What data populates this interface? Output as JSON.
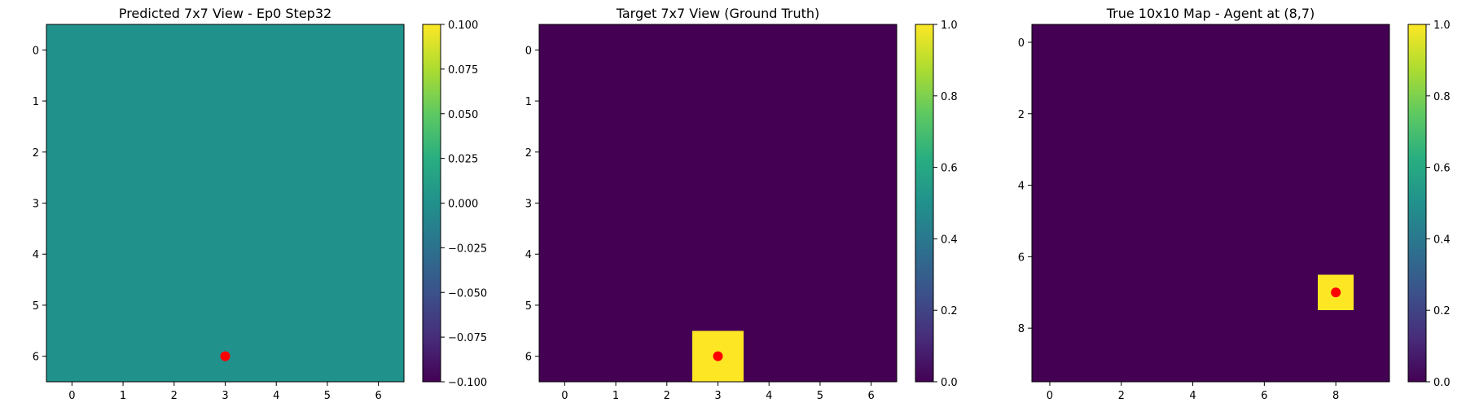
{
  "chart_data": [
    {
      "type": "heatmap",
      "title": "Predicted 7x7 View - Ep0 Step32",
      "grid_size": [
        7,
        7
      ],
      "x_ticks": [
        0,
        1,
        2,
        3,
        4,
        5,
        6
      ],
      "y_ticks": [
        0,
        1,
        2,
        3,
        4,
        5,
        6
      ],
      "values": [
        [
          0,
          0,
          0,
          0,
          0,
          0,
          0
        ],
        [
          0,
          0,
          0,
          0,
          0,
          0,
          0
        ],
        [
          0,
          0,
          0,
          0,
          0,
          0,
          0
        ],
        [
          0,
          0,
          0,
          0,
          0,
          0,
          0
        ],
        [
          0,
          0,
          0,
          0,
          0,
          0,
          0
        ],
        [
          0,
          0,
          0,
          0,
          0,
          0,
          0
        ],
        [
          0,
          0,
          0,
          0,
          0,
          0,
          0
        ]
      ],
      "colormap": "viridis",
      "vmin": -0.1,
      "vmax": 0.1,
      "colorbar_ticks": [
        "0.100",
        "0.075",
        "0.050",
        "0.025",
        "0.000",
        "−0.025",
        "−0.050",
        "−0.075",
        "−0.100"
      ],
      "colorbar_tick_values": [
        0.1,
        0.075,
        0.05,
        0.025,
        0.0,
        -0.025,
        -0.05,
        -0.075,
        -0.1
      ],
      "marker": {
        "x": 3,
        "y": 6,
        "color": "#ff0000"
      }
    },
    {
      "type": "heatmap",
      "title": "Target 7x7 View (Ground Truth)",
      "grid_size": [
        7,
        7
      ],
      "x_ticks": [
        0,
        1,
        2,
        3,
        4,
        5,
        6
      ],
      "y_ticks": [
        0,
        1,
        2,
        3,
        4,
        5,
        6
      ],
      "values": [
        [
          0,
          0,
          0,
          0,
          0,
          0,
          0
        ],
        [
          0,
          0,
          0,
          0,
          0,
          0,
          0
        ],
        [
          0,
          0,
          0,
          0,
          0,
          0,
          0
        ],
        [
          0,
          0,
          0,
          0,
          0,
          0,
          0
        ],
        [
          0,
          0,
          0,
          0,
          0,
          0,
          0
        ],
        [
          0,
          0,
          0,
          0,
          0,
          0,
          0
        ],
        [
          0,
          0,
          0,
          1,
          0,
          0,
          0
        ]
      ],
      "colormap": "viridis",
      "vmin": 0.0,
      "vmax": 1.0,
      "colorbar_ticks": [
        "1.0",
        "0.8",
        "0.6",
        "0.4",
        "0.2",
        "0.0"
      ],
      "colorbar_tick_values": [
        1.0,
        0.8,
        0.6,
        0.4,
        0.2,
        0.0
      ],
      "marker": {
        "x": 3,
        "y": 6,
        "color": "#ff0000"
      }
    },
    {
      "type": "heatmap",
      "title": "True 10x10 Map - Agent at (8,7)",
      "grid_size": [
        10,
        10
      ],
      "x_ticks": [
        0,
        2,
        4,
        6,
        8
      ],
      "y_ticks": [
        0,
        2,
        4,
        6,
        8
      ],
      "values": [
        [
          0,
          0,
          0,
          0,
          0,
          0,
          0,
          0,
          0,
          0
        ],
        [
          0,
          0,
          0,
          0,
          0,
          0,
          0,
          0,
          0,
          0
        ],
        [
          0,
          0,
          0,
          0,
          0,
          0,
          0,
          0,
          0,
          0
        ],
        [
          0,
          0,
          0,
          0,
          0,
          0,
          0,
          0,
          0,
          0
        ],
        [
          0,
          0,
          0,
          0,
          0,
          0,
          0,
          0,
          0,
          0
        ],
        [
          0,
          0,
          0,
          0,
          0,
          0,
          0,
          0,
          0,
          0
        ],
        [
          0,
          0,
          0,
          0,
          0,
          0,
          0,
          0,
          0,
          0
        ],
        [
          0,
          0,
          0,
          0,
          0,
          0,
          0,
          0,
          1,
          0
        ],
        [
          0,
          0,
          0,
          0,
          0,
          0,
          0,
          0,
          0,
          0
        ],
        [
          0,
          0,
          0,
          0,
          0,
          0,
          0,
          0,
          0,
          0
        ]
      ],
      "colormap": "viridis",
      "vmin": 0.0,
      "vmax": 1.0,
      "colorbar_ticks": [
        "1.0",
        "0.8",
        "0.6",
        "0.4",
        "0.2",
        "0.0"
      ],
      "colorbar_tick_values": [
        1.0,
        0.8,
        0.6,
        0.4,
        0.2,
        0.0
      ],
      "marker": {
        "x": 8,
        "y": 7,
        "color": "#ff0000"
      }
    }
  ]
}
